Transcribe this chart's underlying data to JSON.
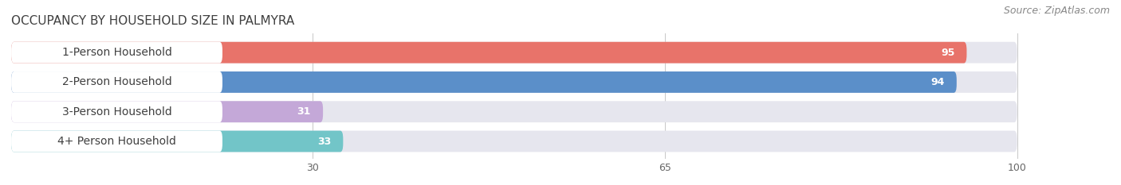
{
  "title": "OCCUPANCY BY HOUSEHOLD SIZE IN PALMYRA",
  "source": "Source: ZipAtlas.com",
  "categories": [
    "1-Person Household",
    "2-Person Household",
    "3-Person Household",
    "4+ Person Household"
  ],
  "values": [
    95,
    94,
    31,
    33
  ],
  "bar_colors": [
    "#E8736A",
    "#5B8FC9",
    "#C4A8D8",
    "#72C5C8"
  ],
  "bar_bg_color": "#E6E6EE",
  "xticks": [
    30,
    65,
    100
  ],
  "xmax": 100,
  "xlim_max": 107,
  "title_fontsize": 11,
  "source_fontsize": 9,
  "label_fontsize": 10,
  "value_fontsize": 9,
  "background_color": "#FFFFFF"
}
